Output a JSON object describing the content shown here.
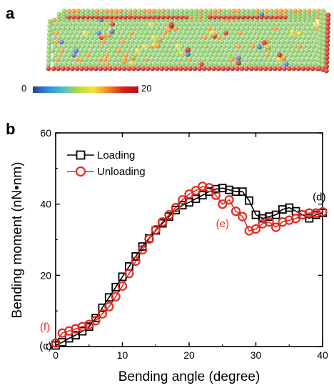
{
  "panel_a": {
    "label": "a",
    "colorbar": {
      "min_label": "0",
      "max_label": "20",
      "colors": [
        "#2a3a9e",
        "#2f8fd9",
        "#4cc3c8",
        "#b7d849",
        "#f5e23a",
        "#f08a2b",
        "#d81f1a",
        "#b0141a"
      ]
    },
    "nanowire_colors": {
      "body": "#8ccf6e",
      "edge": "#d8271e",
      "defect_orange": "#f0a030",
      "defect_blue": "#3f6fcf",
      "defect_yellow": "#f3dd3c"
    }
  },
  "panel_b": {
    "label": "b"
  },
  "chart_data": {
    "type": "line",
    "xlabel": "Bending angle (degree)",
    "ylabel": "Bending moment (nN•nm)",
    "xlim": [
      0,
      40
    ],
    "ylim": [
      0,
      60
    ],
    "xticks": [
      0,
      10,
      20,
      30,
      40
    ],
    "yticks": [
      0,
      20,
      40,
      60
    ],
    "legend_position": "top-left",
    "series": [
      {
        "name": "Loading",
        "color": "#000000",
        "marker": "square",
        "x": [
          0,
          1,
          2,
          3,
          4,
          5,
          6,
          7,
          8,
          9,
          10,
          11,
          12,
          13,
          14,
          15,
          16,
          17,
          18,
          19,
          20,
          21,
          22,
          23,
          24,
          25,
          26,
          27,
          28,
          29,
          30,
          31,
          32,
          33,
          34,
          35,
          36,
          37,
          38,
          39,
          40
        ],
        "values": [
          0.3,
          1.2,
          2.3,
          3.2,
          4.3,
          5.6,
          8.0,
          10.9,
          13.8,
          16.7,
          19.6,
          22.5,
          25.3,
          28.1,
          30.4,
          32.6,
          34.6,
          36.5,
          38.3,
          39.7,
          40.5,
          41.5,
          42.5,
          43.5,
          44.2,
          44.5,
          44.0,
          43.5,
          43.5,
          41.0,
          37.0,
          36.0,
          36.5,
          37.0,
          38.5,
          39.0,
          38.0,
          37.0,
          36.0,
          37.0,
          37.5
        ]
      },
      {
        "name": "Unloading",
        "color": "#e52a22",
        "marker": "circle",
        "x": [
          0,
          1,
          2,
          3,
          4,
          5,
          6,
          7,
          8,
          9,
          10,
          11,
          12,
          13,
          14,
          15,
          16,
          17,
          18,
          19,
          20,
          21,
          22,
          23,
          24,
          25,
          26,
          27,
          28,
          29,
          30,
          31,
          32,
          33,
          34,
          35,
          36,
          37,
          38,
          39,
          40
        ],
        "values": [
          1.0,
          3.8,
          4.4,
          5.0,
          5.6,
          6.2,
          7.3,
          9.2,
          11.2,
          14.0,
          17.0,
          20.5,
          24.0,
          27.2,
          30.2,
          32.8,
          35.0,
          37.0,
          39.0,
          41.2,
          42.8,
          43.8,
          45.0,
          44.6,
          42.5,
          40.0,
          41.2,
          38.0,
          36.5,
          32.5,
          33.0,
          34.5,
          35.0,
          33.5,
          35.0,
          35.5,
          36.0,
          37.0,
          37.5,
          37.5,
          37.8
        ]
      }
    ],
    "annotations": [
      {
        "text": "(d)",
        "x": 39.5,
        "y": 41.0,
        "color": "#000000"
      },
      {
        "text": "(e)",
        "x": 25.0,
        "y": 33.5,
        "color": "#e52a22"
      },
      {
        "text": "(f)",
        "x": -1.6,
        "y": 4.5,
        "color": "#e52a22"
      },
      {
        "text": "(c)",
        "x": -1.5,
        "y": -0.8,
        "color": "#000000"
      }
    ]
  }
}
